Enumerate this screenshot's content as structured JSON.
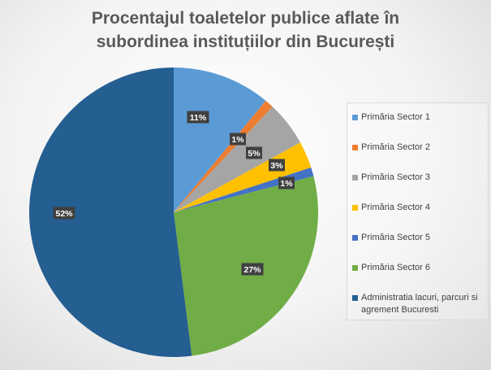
{
  "chart_data": {
    "type": "pie",
    "title": [
      "Procentajul toaletelor publice aflate în",
      "subordinea instituțiilor din București"
    ],
    "categories": [
      "Primăria Sector 1",
      "Primăria Sector 2",
      "Primăria Sector 3",
      "Primăria Sector 4",
      "Primăria Sector 5",
      "Primăria Sector 6",
      "Administratia lacuri, parcuri si agrement Bucuresti"
    ],
    "values": [
      11,
      1,
      5,
      3,
      1,
      27,
      52
    ],
    "data_labels": [
      "11%",
      "1%",
      "5%",
      "3%",
      "1%",
      "27%",
      "52%"
    ],
    "colors": [
      "#5b9bd5",
      "#ed7d31",
      "#a5a5a5",
      "#ffc000",
      "#4472c4",
      "#70ad47",
      "#255e91"
    ],
    "legend_position": "right"
  }
}
